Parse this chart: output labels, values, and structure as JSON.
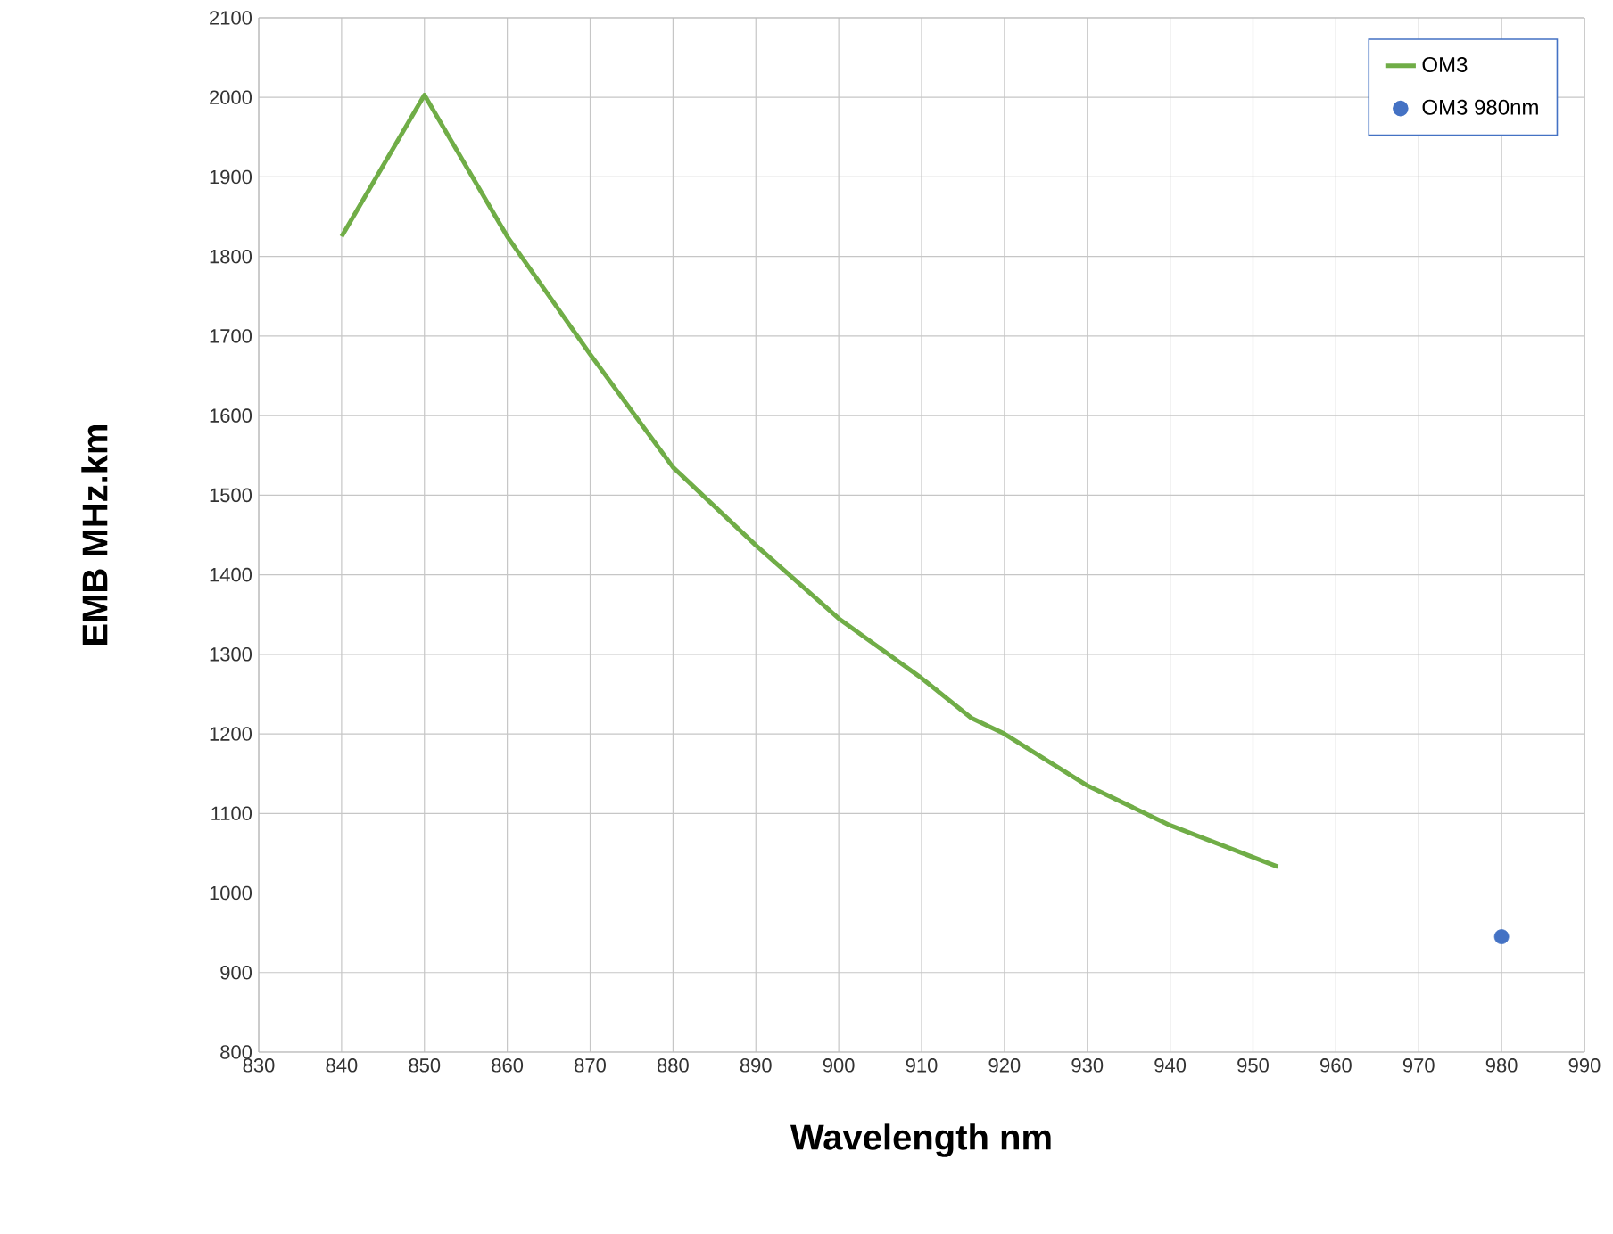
{
  "chart_data": {
    "type": "line",
    "xlabel": "Wavelength nm",
    "ylabel": "EMB  MHz.km",
    "xlim": [
      830,
      990
    ],
    "xticks": [
      830,
      840,
      850,
      860,
      870,
      880,
      890,
      900,
      910,
      920,
      930,
      940,
      950,
      960,
      970,
      980,
      990
    ],
    "ylim": [
      800,
      2100
    ],
    "yticks": [
      800,
      900,
      1000,
      1100,
      1200,
      1300,
      1400,
      1500,
      1600,
      1700,
      1800,
      1900,
      2000,
      2100
    ],
    "grid": true,
    "legend": "top right",
    "series": [
      {
        "name": "OM3",
        "color": "#70ad47",
        "marker": "none",
        "x": [
          840,
          850,
          860,
          870,
          880,
          890,
          900,
          910,
          916,
          920,
          930,
          940,
          953
        ],
        "values": [
          1825,
          2003,
          1825,
          1677,
          1535,
          1437,
          1345,
          1270,
          1220,
          1200,
          1135,
          1085,
          1033
        ]
      },
      {
        "name": "OM3 980nm",
        "type": "scatter",
        "color": "#4472c4",
        "marker": "circle",
        "x": [
          980
        ],
        "values": [
          945
        ]
      }
    ]
  }
}
